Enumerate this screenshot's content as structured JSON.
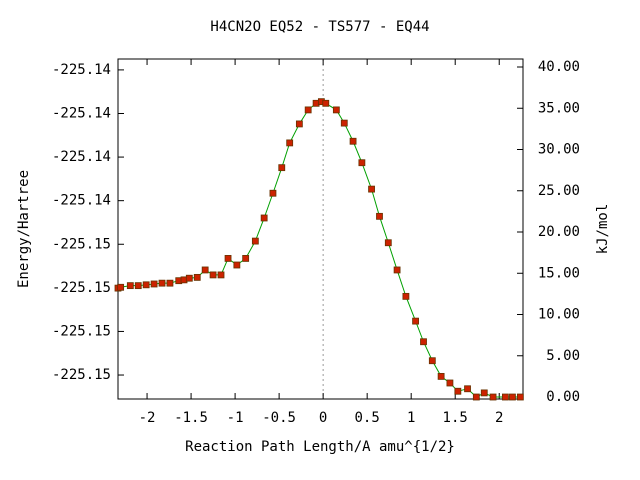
{
  "chart_data": {
    "type": "line",
    "title": "H4CN2O   EQ52 - TS577 - EQ44",
    "x_label": "Reaction Path Length/A amu^{1/2}",
    "y_label": "Energy/Hartree",
    "y2_label": "kJ/mol",
    "xlim": [
      -2.33,
      2.27
    ],
    "xticks": [
      -2,
      -1.5,
      -1,
      -0.5,
      0,
      0.5,
      1,
      1.5,
      2
    ],
    "ylim": [
      -225.1531,
      -225.1375
    ],
    "yticks": [
      {
        "value": -225.138,
        "label": "-225.14"
      },
      {
        "value": -225.14,
        "label": "-225.14"
      },
      {
        "value": -225.142,
        "label": "-225.14"
      },
      {
        "value": -225.144,
        "label": "-225.14"
      },
      {
        "value": -225.146,
        "label": "-225.15"
      },
      {
        "value": -225.148,
        "label": "-225.15"
      },
      {
        "value": -225.15,
        "label": "-225.15"
      },
      {
        "value": -225.152,
        "label": "-225.15"
      }
    ],
    "y2lim": [
      -0.24,
      40.97
    ],
    "y2ticks": [
      {
        "value": 0,
        "label": "0.00"
      },
      {
        "value": 5,
        "label": "5.00"
      },
      {
        "value": 10,
        "label": "10.00"
      },
      {
        "value": 15,
        "label": "15.00"
      },
      {
        "value": 20,
        "label": "20.00"
      },
      {
        "value": 25,
        "label": "25.00"
      },
      {
        "value": 30,
        "label": "30.00"
      },
      {
        "value": 35,
        "label": "35.00"
      },
      {
        "value": 40,
        "label": "40.00"
      }
    ],
    "vline": 0,
    "x": [
      -2.33,
      -2.3,
      -2.19,
      -2.1,
      -2.01,
      -1.92,
      -1.83,
      -1.74,
      -1.64,
      -1.58,
      -1.52,
      -1.43,
      -1.34,
      -1.25,
      -1.16,
      -1.08,
      -0.98,
      -0.88,
      -0.77,
      -0.67,
      -0.57,
      -0.47,
      -0.38,
      -0.27,
      -0.17,
      -0.08,
      -0.02,
      0.03,
      0.15,
      0.24,
      0.34,
      0.44,
      0.55,
      0.64,
      0.74,
      0.84,
      0.94,
      1.05,
      1.14,
      1.24,
      1.34,
      1.44,
      1.53,
      1.64,
      1.74,
      1.83,
      1.93,
      2.07,
      2.15,
      2.24
    ],
    "series": [
      {
        "axis": "y2",
        "color": "#00a000",
        "marker_color": "#cc2200",
        "values": [
          13.2,
          13.3,
          13.5,
          13.5,
          13.6,
          13.7,
          13.8,
          13.8,
          14.1,
          14.2,
          14.4,
          14.5,
          15.4,
          14.8,
          14.8,
          16.8,
          16.0,
          16.8,
          18.9,
          21.7,
          24.7,
          27.8,
          30.8,
          33.1,
          34.8,
          35.6,
          35.8,
          35.6,
          34.8,
          33.2,
          31.0,
          28.4,
          25.2,
          21.9,
          18.7,
          15.4,
          12.2,
          9.2,
          6.7,
          4.4,
          2.5,
          1.7,
          0.7,
          1.0,
          0,
          0.5,
          0,
          0,
          0,
          0
        ]
      }
    ]
  }
}
